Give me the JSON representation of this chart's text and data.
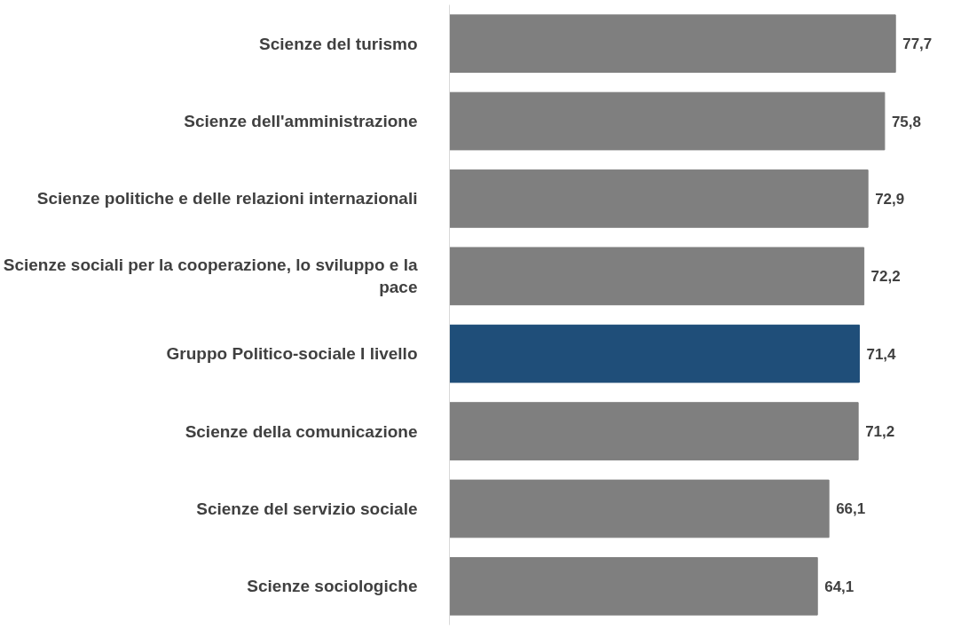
{
  "chart_data": {
    "type": "bar",
    "orientation": "horizontal",
    "categories": [
      "Scienze del turismo",
      "Scienze dell'amministrazione",
      "Scienze politiche e delle relazioni internazionali",
      "Scienze sociali per la cooperazione, lo sviluppo e la pace",
      "Gruppo Politico-sociale I livello",
      "Scienze della comunicazione",
      "Scienze del servizio sociale",
      "Scienze sociologiche"
    ],
    "values": [
      77.7,
      75.8,
      72.9,
      72.2,
      71.4,
      71.2,
      66.1,
      64.1
    ],
    "colors": [
      "#7f7f7f",
      "#7f7f7f",
      "#7f7f7f",
      "#7f7f7f",
      "#1f4e79",
      "#7f7f7f",
      "#7f7f7f",
      "#7f7f7f"
    ],
    "value_labels": [
      "77,7",
      "75,8",
      "72,9",
      "72,2",
      "71,4",
      "71,2",
      "66,1",
      "64,1"
    ],
    "tick_labels": "y",
    "grid": false
  }
}
